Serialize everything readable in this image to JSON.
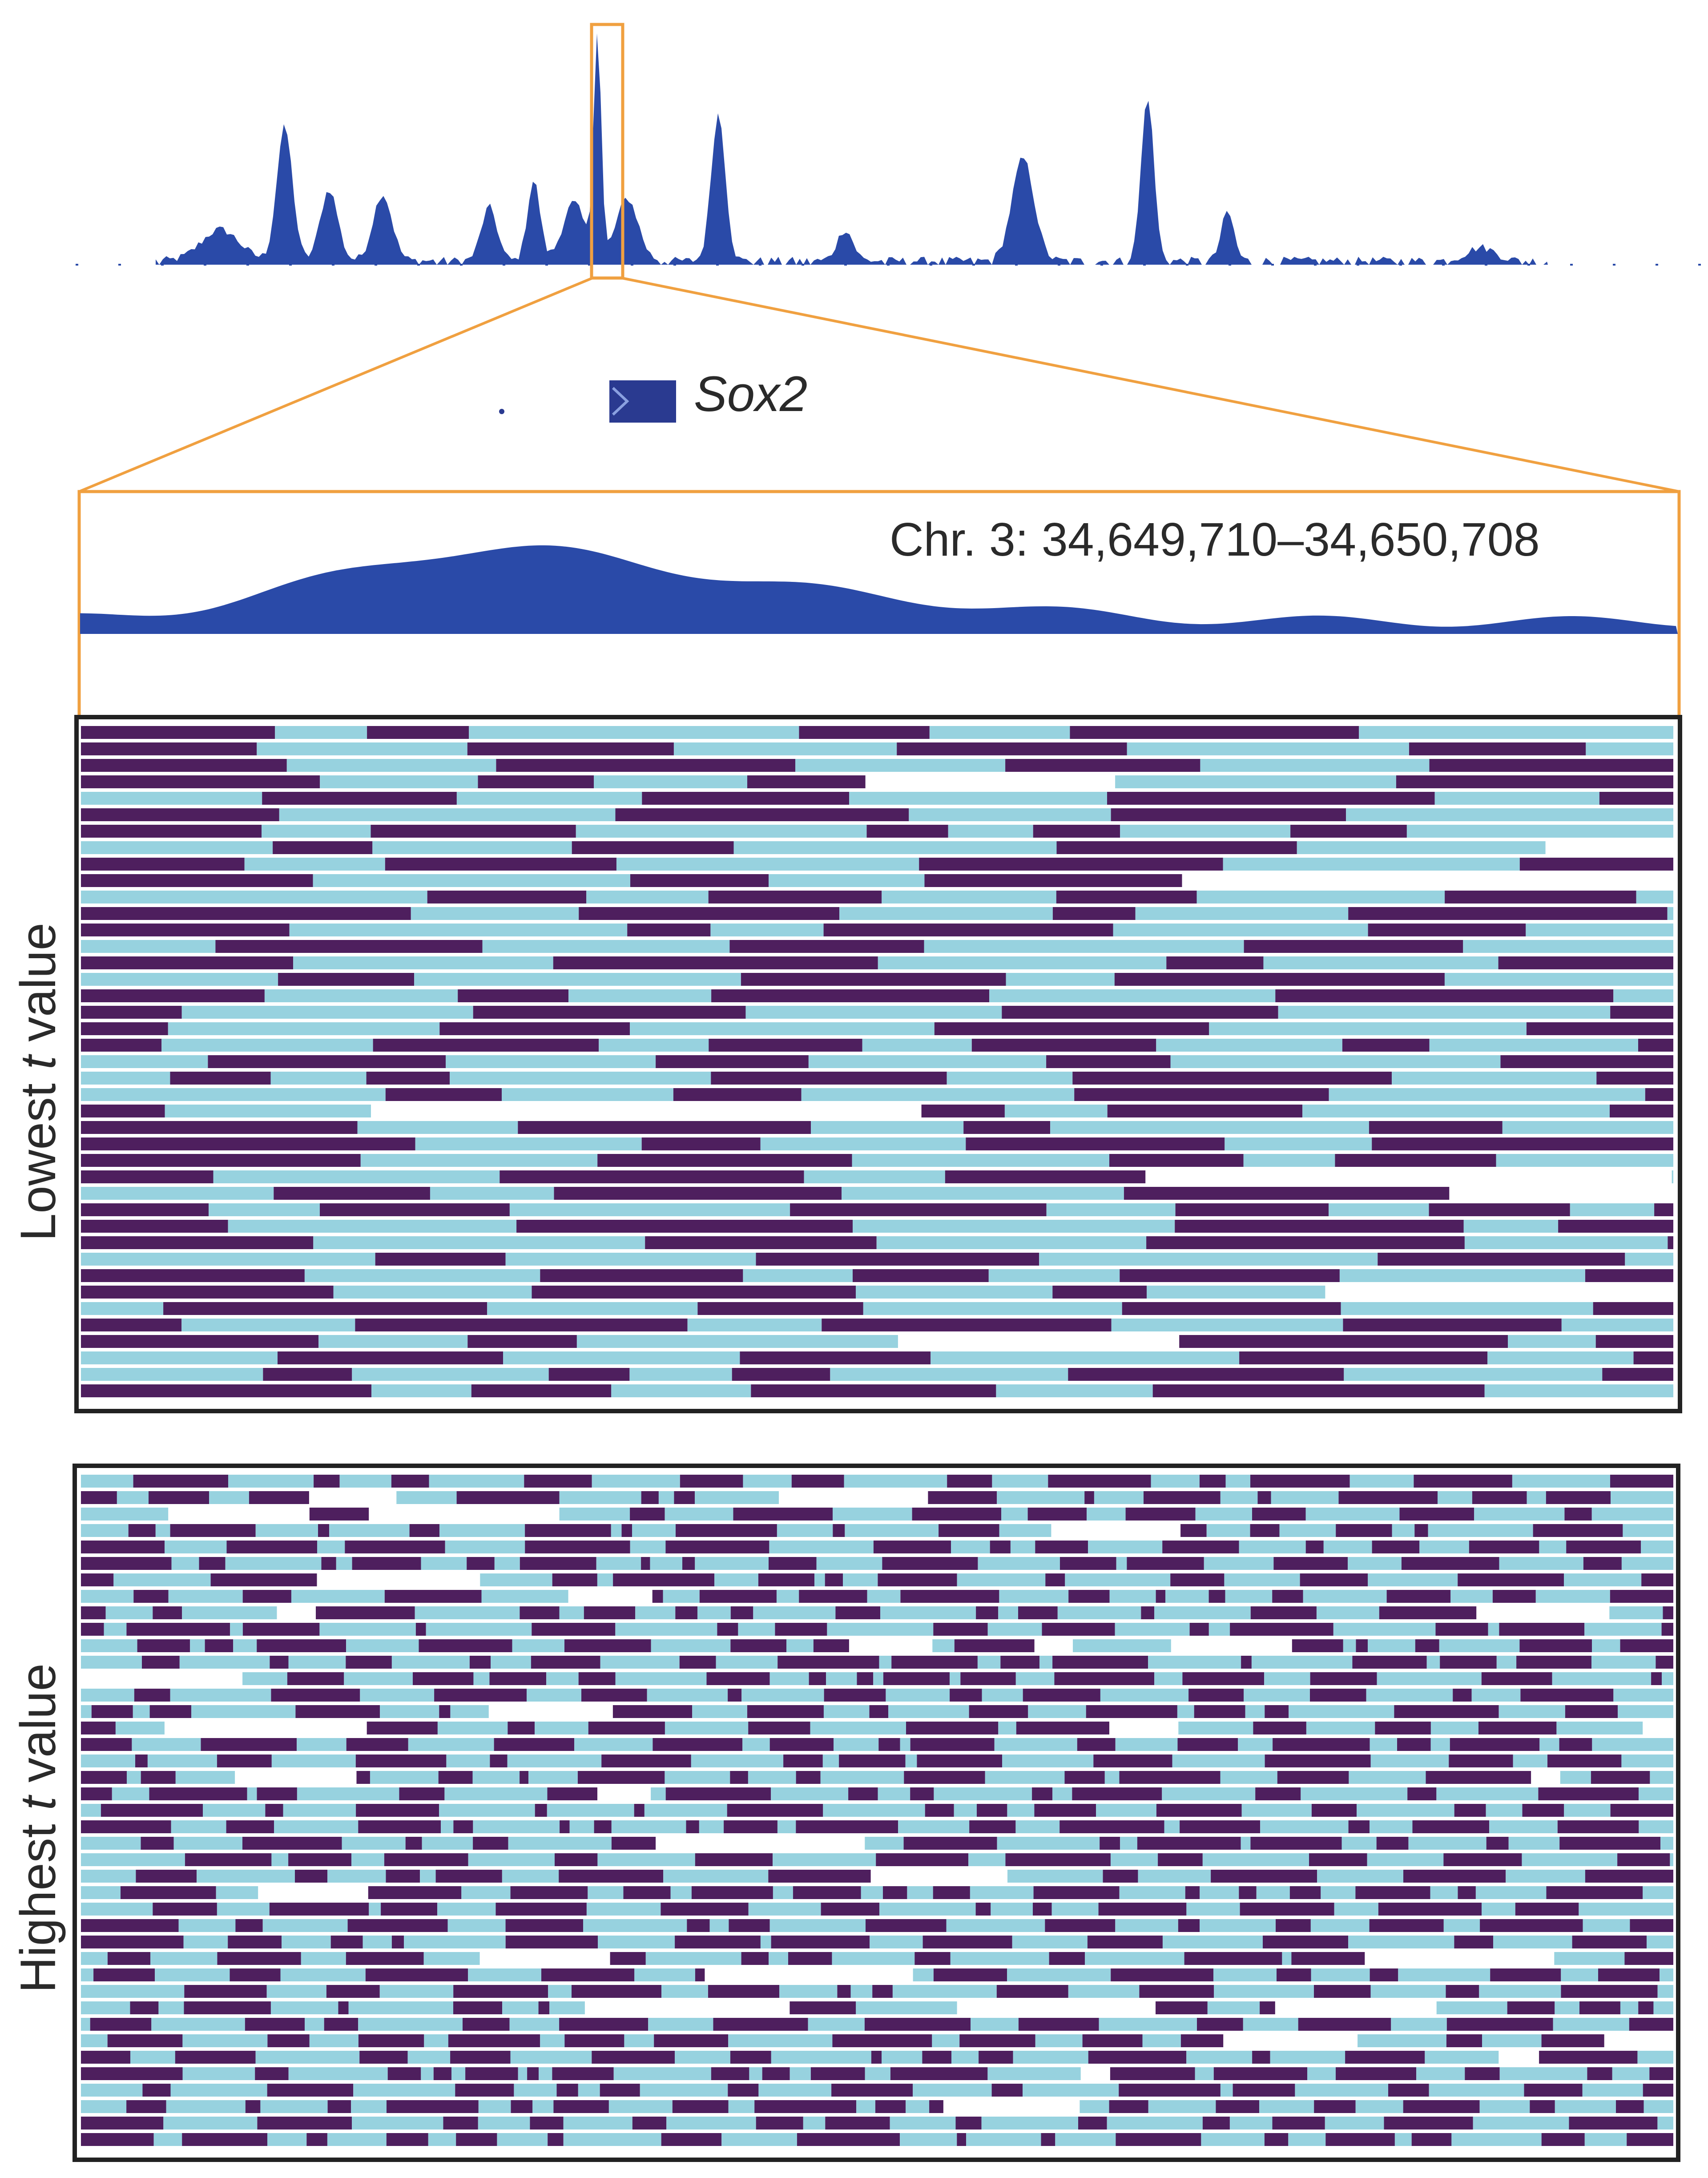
{
  "gene_label": "Sox2",
  "region_label": "Chr. 3: 34,649,710–34,650,708",
  "panels": [
    {
      "id": "lowest",
      "ylabel_before": "Lowest ",
      "ylabel_var": "t",
      "ylabel_after": " value"
    },
    {
      "id": "highest",
      "ylabel_before": "Highest ",
      "ylabel_var": "t",
      "ylabel_after": " value"
    }
  ],
  "colors": {
    "track": "#2a4aa8",
    "highlight": "#f0a040",
    "methylated": "#4e1f5e",
    "unmethylated": "#97d2df",
    "frame": "#222222",
    "gene": "#2a3a90"
  }
}
